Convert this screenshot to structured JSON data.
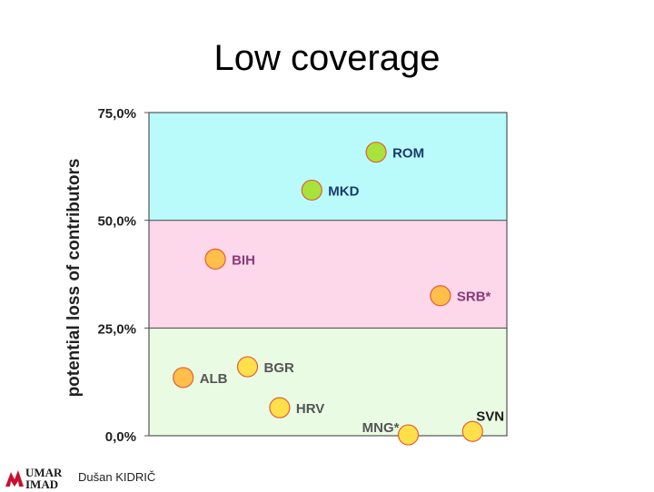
{
  "slide": {
    "title": "Low coverage",
    "author": "Dušan KIDRIČ"
  },
  "logo": {
    "line1": "UMAR",
    "line2": "IMAD",
    "color_accent": "#c8102e"
  },
  "chart_data": {
    "type": "scatter",
    "title": "",
    "xlabel": "",
    "ylabel": "potential loss of contributors",
    "ylim": [
      0,
      75
    ],
    "yticks": [
      {
        "value": 0,
        "label": "0,0%"
      },
      {
        "value": 25,
        "label": "25,0%"
      },
      {
        "value": 50,
        "label": "50,0%"
      },
      {
        "value": 75,
        "label": "75,0%"
      }
    ],
    "xlim": [
      0,
      100
    ],
    "bands": [
      {
        "from": 0,
        "to": 25,
        "color": "#e9fbe3"
      },
      {
        "from": 25,
        "to": 50,
        "color": "#fdd7ea"
      },
      {
        "from": 50,
        "to": 75,
        "color": "#b9fbfb"
      }
    ],
    "points": [
      {
        "label": "ROM",
        "x": 65,
        "y": 65.8,
        "color": "#a8e23c",
        "label_color": "#1a3a6a",
        "label_side": "right"
      },
      {
        "label": "MKD",
        "x": 45,
        "y": 57.0,
        "color": "#a8e23c",
        "label_color": "#1a3a6a",
        "label_side": "right"
      },
      {
        "label": "BIH",
        "x": 15,
        "y": 41.0,
        "color": "#ffbf4a",
        "label_color": "#8a3a7a",
        "label_side": "right"
      },
      {
        "label": "SRB*",
        "x": 85,
        "y": 32.5,
        "color": "#ffbf4a",
        "label_color": "#8a3a7a",
        "label_side": "right"
      },
      {
        "label": "ALB",
        "x": 5,
        "y": 13.5,
        "color": "#ffbf4a",
        "label_color": "#555555",
        "label_side": "right"
      },
      {
        "label": "BGR",
        "x": 25,
        "y": 16.0,
        "color": "#ffe04a",
        "label_color": "#555555",
        "label_side": "right"
      },
      {
        "label": "HRV",
        "x": 35,
        "y": 6.5,
        "color": "#ffe04a",
        "label_color": "#555555",
        "label_side": "right"
      },
      {
        "label": "MNG*",
        "x": 75,
        "y": 0.2,
        "color": "#ffe04a",
        "label_color": "#555555",
        "label_side": "left"
      },
      {
        "label": "SVN",
        "x": 95,
        "y": 1.0,
        "color": "#ffe04a",
        "label_color": "#1a1a1a",
        "label_side": "top"
      }
    ]
  }
}
